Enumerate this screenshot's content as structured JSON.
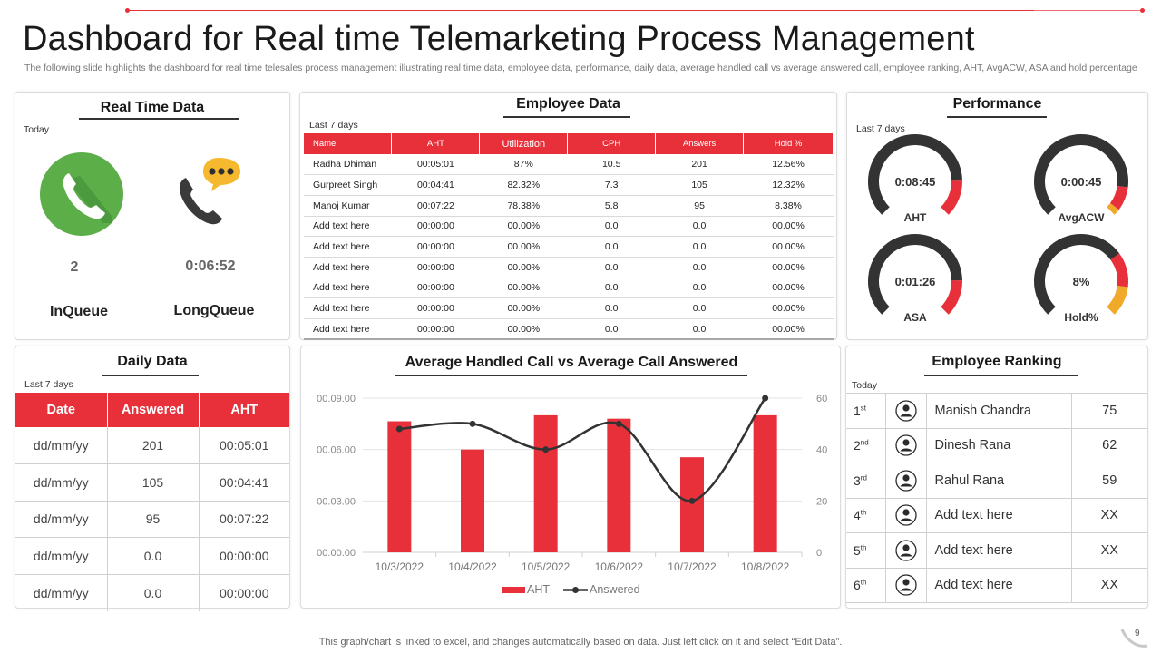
{
  "title": "Dashboard for Real time Telemarketing Process Management",
  "subtitle": "The following slide highlights the dashboard for real time telesales process management illustrating real time data, employee data, performance, daily data, average handled call vs average answered call, employee ranking, AHT, AvgACW,  ASA  and hold percentage",
  "colors": {
    "accent": "#e8303a",
    "dark": "#333333",
    "green": "#5cae49",
    "yellow": "#f5b82e",
    "gold": "#f0a928"
  },
  "real_time": {
    "title": "Real Time Data",
    "period": "Today",
    "in_queue": {
      "icon": "phone-green-icon",
      "value": "2",
      "label": "InQueue"
    },
    "long_queue": {
      "icon": "phone-chat-icon",
      "value": "0:06:52",
      "label": "LongQueue"
    }
  },
  "employee_data": {
    "title": "Employee Data",
    "period": "Last 7 days",
    "headers": [
      "Name",
      "AHT",
      "Utilization",
      "CPH",
      "Answers",
      "Hold %"
    ],
    "rows": [
      [
        "Radha Dhiman",
        "00:05:01",
        "87%",
        "10.5",
        "201",
        "12.56%"
      ],
      [
        "Gurpreet Singh",
        "00:04:41",
        "82.32%",
        "7.3",
        "105",
        "12.32%"
      ],
      [
        "Manoj Kumar",
        "00:07:22",
        "78.38%",
        "5.8",
        "95",
        "8.38%"
      ],
      [
        "Add text here",
        "00:00:00",
        "00.00%",
        "0.0",
        "0.0",
        "00.00%"
      ],
      [
        "Add text here",
        "00:00:00",
        "00.00%",
        "0.0",
        "0.0",
        "00.00%"
      ],
      [
        "Add text here",
        "00:00:00",
        "00.00%",
        "0.0",
        "0.0",
        "00.00%"
      ],
      [
        "Add text here",
        "00:00:00",
        "00.00%",
        "0.0",
        "0.0",
        "00.00%"
      ],
      [
        "Add text here",
        "00:00:00",
        "00.00%",
        "0.0",
        "0.0",
        "00.00%"
      ],
      [
        "Add text here",
        "00:00:00",
        "00.00%",
        "0.0",
        "0.0",
        "00.00%"
      ]
    ]
  },
  "performance": {
    "title": "Performance",
    "period": "Last 7 days",
    "gauges": [
      {
        "value": "0:08:45",
        "label": "AHT"
      },
      {
        "value": "0:00:45",
        "label": "AvgACW"
      },
      {
        "value": "0:01:26",
        "label": "ASA"
      },
      {
        "value": "8%",
        "label": "Hold%"
      }
    ]
  },
  "daily_data": {
    "title": "Daily Data",
    "period": "Last 7 days",
    "headers": [
      "Date",
      "Answered",
      "AHT"
    ],
    "rows": [
      [
        "dd/mm/yy",
        "201",
        "00:05:01"
      ],
      [
        "dd/mm/yy",
        "105",
        "00:04:41"
      ],
      [
        "dd/mm/yy",
        "95",
        "00:07:22"
      ],
      [
        "dd/mm/yy",
        "0.0",
        "00:00:00"
      ],
      [
        "dd/mm/yy",
        "0.0",
        "00:00:00"
      ]
    ]
  },
  "chart_data": {
    "type": "bar",
    "title": "Average Handled Call vs Average Call Answered",
    "categories": [
      "10/3/2022",
      "10/4/2022",
      "10/5/2022",
      "10/6/2022",
      "10/7/2022",
      "10/8/2022"
    ],
    "series": [
      {
        "name": "AHT",
        "type": "bar",
        "axis": "left",
        "values": [
          7.65,
          6.0,
          8.0,
          7.8,
          5.55,
          8.0
        ]
      },
      {
        "name": "Answered",
        "type": "line",
        "axis": "right",
        "values": [
          48,
          50,
          40,
          50,
          20,
          60
        ]
      }
    ],
    "left_axis": {
      "ticks": [
        "00.00.00",
        "00.03.00",
        "00.06.00",
        "00.09.00"
      ],
      "range": [
        0,
        9
      ]
    },
    "right_axis": {
      "ticks": [
        "0",
        "20",
        "40",
        "60"
      ],
      "range": [
        0,
        60
      ]
    },
    "legend": "bottom",
    "grid": true
  },
  "ranking": {
    "title": "Employee Ranking",
    "period": "Today",
    "rows": [
      {
        "pos": "1",
        "suffix": "st",
        "name": "Manish Chandra",
        "score": "75"
      },
      {
        "pos": "2",
        "suffix": "nd",
        "name": "Dinesh Rana",
        "score": "62"
      },
      {
        "pos": "3",
        "suffix": "rd",
        "name": "Rahul Rana",
        "score": "59"
      },
      {
        "pos": "4",
        "suffix": "th",
        "name": "Add text here",
        "score": "XX"
      },
      {
        "pos": "5",
        "suffix": "th",
        "name": "Add text here",
        "score": "XX"
      },
      {
        "pos": "6",
        "suffix": "th",
        "name": "Add text here",
        "score": "XX"
      }
    ]
  },
  "footer": "This graph/chart is linked to excel,  and changes automatically based on data. Just left click on it and select “Edit Data”.",
  "page_number": "9"
}
